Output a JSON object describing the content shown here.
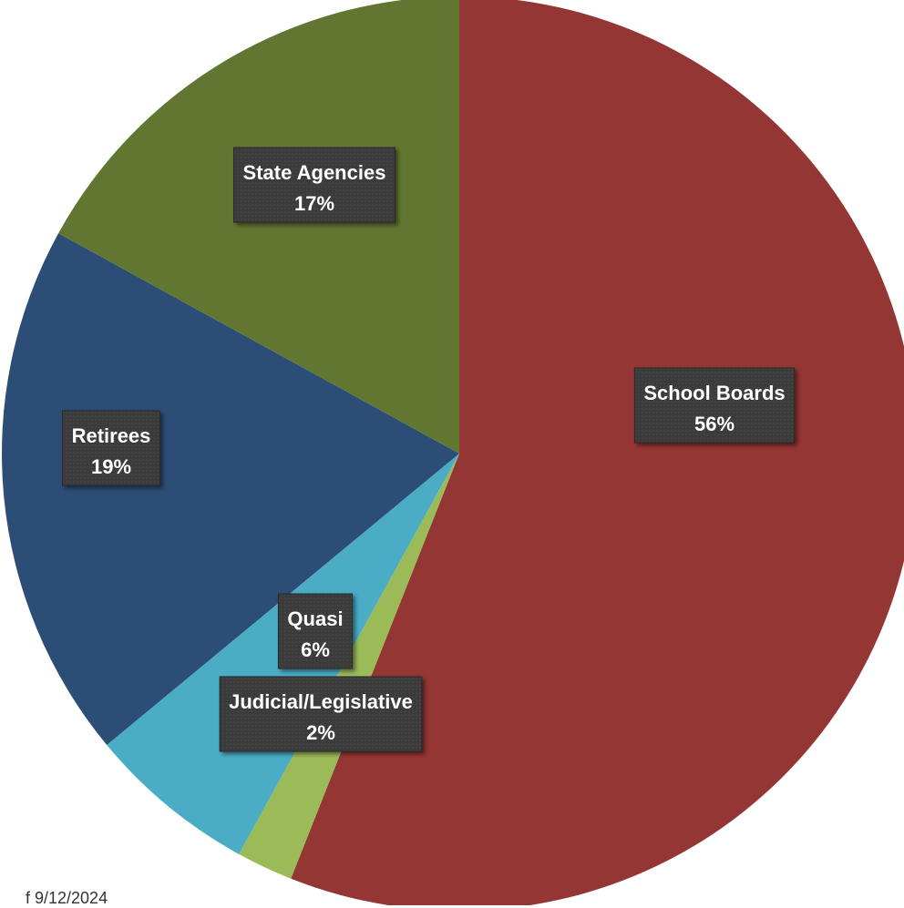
{
  "chart_data": {
    "type": "pie",
    "slices": [
      {
        "name": "School Boards",
        "value": 56,
        "label": "56%",
        "color": "#943634"
      },
      {
        "name": "Judicial/Legislative",
        "value": 2,
        "label": "2%",
        "color": "#9BBB59"
      },
      {
        "name": "Quasi",
        "value": 6,
        "label": "6%",
        "color": "#4BACC6"
      },
      {
        "name": "Retirees",
        "value": 19,
        "label": "19%",
        "color": "#2C4D75"
      },
      {
        "name": "State Agencies",
        "value": 17,
        "label": "17%",
        "color": "#617631"
      }
    ],
    "start_angle_deg": 0,
    "direction": "clockwise",
    "legend": "none"
  },
  "footnote": "f 9/12/2024"
}
